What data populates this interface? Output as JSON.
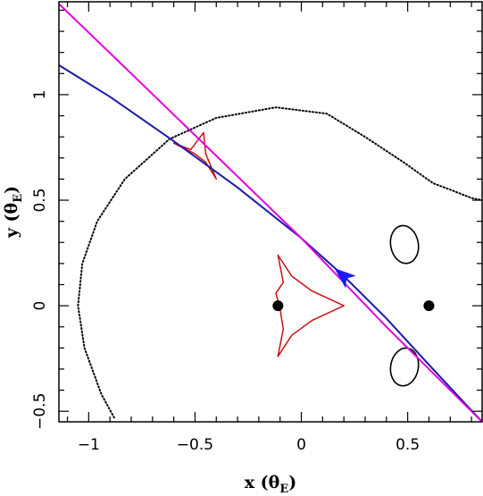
{
  "chart_data": {
    "type": "line",
    "title": "",
    "xlabel": {
      "main": "x (",
      "greek": "θ",
      "sub": "E",
      "close": ")"
    },
    "ylabel": {
      "main": "y (",
      "greek": "θ",
      "sub": "E",
      "close": ")"
    },
    "xlim": [
      -1.14,
      0.85
    ],
    "ylim": [
      -0.55,
      1.44
    ],
    "grid": false,
    "x_ticks": [
      {
        "value": -1,
        "label": "−1"
      },
      {
        "value": -0.5,
        "label": "−0.5"
      },
      {
        "value": 0,
        "label": "0"
      },
      {
        "value": 0.5,
        "label": "0.5"
      }
    ],
    "y_ticks": [
      {
        "value": -0.5,
        "label": "−0.5"
      },
      {
        "value": 0,
        "label": "0"
      },
      {
        "value": 0.5,
        "label": "0.5"
      },
      {
        "value": 1,
        "label": "1"
      }
    ],
    "lens_masses": [
      {
        "x": -0.11,
        "y": 0.0
      },
      {
        "x": 0.6,
        "y": 0.0
      }
    ],
    "critical_curves": {
      "outer": [
        [
          -0.88,
          -0.53
        ],
        [
          -0.94,
          -0.42
        ],
        [
          -1.02,
          -0.2
        ],
        [
          -1.05,
          0.0
        ],
        [
          -1.03,
          0.2
        ],
        [
          -0.96,
          0.4
        ],
        [
          -0.83,
          0.6
        ],
        [
          -0.62,
          0.79
        ],
        [
          -0.4,
          0.89
        ],
        [
          -0.12,
          0.94
        ],
        [
          0.12,
          0.91
        ],
        [
          0.3,
          0.8
        ],
        [
          0.48,
          0.68
        ],
        [
          0.62,
          0.58
        ],
        [
          0.7,
          0.55
        ],
        [
          0.8,
          0.51
        ],
        [
          0.85,
          0.5
        ]
      ],
      "ovals": [
        {
          "cx": 0.485,
          "cy": 0.29,
          "rx": 0.065,
          "ry": 0.09
        },
        {
          "cx": 0.485,
          "cy": -0.29,
          "rx": 0.065,
          "ry": 0.09
        }
      ]
    },
    "caustics": {
      "central": [
        [
          -0.11,
          0.24
        ],
        [
          -0.045,
          0.14
        ],
        [
          0.05,
          0.07
        ],
        [
          0.2,
          0.0
        ],
        [
          0.05,
          -0.07
        ],
        [
          -0.045,
          -0.14
        ],
        [
          -0.11,
          -0.24
        ],
        [
          -0.085,
          -0.11
        ],
        [
          -0.1,
          -0.015
        ],
        [
          -0.12,
          0.06
        ],
        [
          -0.085,
          0.11
        ],
        [
          -0.11,
          0.24
        ]
      ],
      "secondary": [
        [
          -0.6,
          0.77
        ],
        [
          -0.52,
          0.74
        ],
        [
          -0.46,
          0.82
        ],
        [
          -0.45,
          0.72
        ],
        [
          -0.4,
          0.6
        ],
        [
          -0.45,
          0.68
        ],
        [
          -0.5,
          0.72
        ],
        [
          -0.6,
          0.77
        ]
      ]
    },
    "series": [
      {
        "color": "#1a1aa8",
        "points": [
          [
            -1.14,
            1.14
          ],
          [
            -0.9,
            0.99
          ],
          [
            -0.6,
            0.78
          ],
          [
            -0.3,
            0.56
          ],
          [
            0.0,
            0.32
          ],
          [
            0.2,
            0.14
          ],
          [
            0.4,
            -0.06
          ],
          [
            0.6,
            -0.28
          ],
          [
            0.85,
            -0.55
          ]
        ]
      },
      {
        "color": "#e000e0",
        "points": [
          [
            -1.14,
            1.43
          ],
          [
            -0.8,
            1.1
          ],
          [
            -0.4,
            0.71
          ],
          [
            0.0,
            0.32
          ],
          [
            0.4,
            -0.1
          ],
          [
            0.85,
            -0.55
          ]
        ]
      }
    ],
    "direction_arrow": {
      "x": 0.2,
      "y": 0.14,
      "color": "#1a1aff"
    },
    "colors": {
      "caustic": "#cc1111",
      "critical_curve": "#000000",
      "trajectory": "#1a1aa8",
      "line2": "#e000e0",
      "arrow": "#1a1aff"
    }
  }
}
